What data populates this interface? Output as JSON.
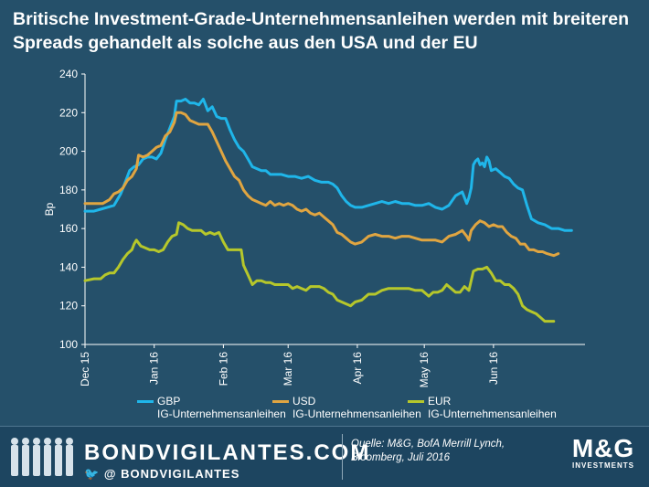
{
  "title": "Britische Investment-Grade-Unternehmensanleihen werden mit breiteren Spreads gehandelt als solche aus den USA und der EU",
  "chart_data": {
    "type": "line",
    "ylabel": "Bp",
    "ylim": [
      100,
      240
    ],
    "yticks": [
      100,
      120,
      140,
      160,
      180,
      200,
      220,
      240
    ],
    "xlim": [
      0,
      224
    ],
    "xticks": [
      {
        "label": "Dec 15",
        "pos": 0
      },
      {
        "label": "Jan 16",
        "pos": 31
      },
      {
        "label": "Feb 16",
        "pos": 62
      },
      {
        "label": "Mar 16",
        "pos": 91
      },
      {
        "label": "Apr 16",
        "pos": 122
      },
      {
        "label": "May 16",
        "pos": 152
      },
      {
        "label": "Jun 16",
        "pos": 183
      }
    ],
    "series": [
      {
        "name": "GBP IG-Unternehmensanleihen",
        "color": "#1fb6ea",
        "points": [
          [
            0,
            169
          ],
          [
            4,
            169
          ],
          [
            7,
            170
          ],
          [
            10,
            171
          ],
          [
            13,
            172
          ],
          [
            14,
            174
          ],
          [
            16,
            178
          ],
          [
            18,
            184
          ],
          [
            20,
            190
          ],
          [
            22,
            192
          ],
          [
            24,
            193
          ],
          [
            26,
            196
          ],
          [
            28,
            197
          ],
          [
            30,
            197
          ],
          [
            32,
            196
          ],
          [
            34,
            199
          ],
          [
            36,
            206
          ],
          [
            38,
            212
          ],
          [
            40,
            218
          ],
          [
            41,
            226
          ],
          [
            43,
            226
          ],
          [
            45,
            227
          ],
          [
            47,
            225
          ],
          [
            49,
            225
          ],
          [
            51,
            224
          ],
          [
            53,
            227
          ],
          [
            55,
            221
          ],
          [
            57,
            223
          ],
          [
            59,
            218
          ],
          [
            61,
            217
          ],
          [
            63,
            217
          ],
          [
            65,
            211
          ],
          [
            67,
            206
          ],
          [
            69,
            202
          ],
          [
            71,
            200
          ],
          [
            73,
            196
          ],
          [
            75,
            192
          ],
          [
            77,
            191
          ],
          [
            79,
            190
          ],
          [
            81,
            190
          ],
          [
            83,
            188
          ],
          [
            85,
            188
          ],
          [
            88,
            188
          ],
          [
            91,
            187
          ],
          [
            94,
            187
          ],
          [
            97,
            186
          ],
          [
            100,
            187
          ],
          [
            103,
            185
          ],
          [
            106,
            184
          ],
          [
            109,
            184
          ],
          [
            111,
            183
          ],
          [
            113,
            181
          ],
          [
            115,
            177
          ],
          [
            117,
            174
          ],
          [
            119,
            172
          ],
          [
            121,
            171
          ],
          [
            124,
            171
          ],
          [
            127,
            172
          ],
          [
            130,
            173
          ],
          [
            133,
            174
          ],
          [
            136,
            173
          ],
          [
            139,
            174
          ],
          [
            142,
            173
          ],
          [
            145,
            173
          ],
          [
            148,
            172
          ],
          [
            151,
            172
          ],
          [
            154,
            173
          ],
          [
            157,
            171
          ],
          [
            160,
            170
          ],
          [
            163,
            172
          ],
          [
            166,
            177
          ],
          [
            169,
            179
          ],
          [
            171,
            173
          ],
          [
            172,
            176
          ],
          [
            173,
            181
          ],
          [
            174,
            193
          ],
          [
            175,
            195
          ],
          [
            176,
            196
          ],
          [
            177,
            193
          ],
          [
            178,
            194
          ],
          [
            179,
            192
          ],
          [
            180,
            197
          ],
          [
            181,
            195
          ],
          [
            182,
            190
          ],
          [
            184,
            191
          ],
          [
            186,
            189
          ],
          [
            188,
            187
          ],
          [
            190,
            186
          ],
          [
            192,
            183
          ],
          [
            194,
            181
          ],
          [
            196,
            180
          ],
          [
            198,
            172
          ],
          [
            200,
            165
          ],
          [
            203,
            163
          ],
          [
            206,
            162
          ],
          [
            209,
            160
          ],
          [
            212,
            160
          ],
          [
            215,
            159
          ],
          [
            218,
            159
          ]
        ]
      },
      {
        "name": "USD IG-Unternehmensanleihen",
        "color": "#e0a541",
        "points": [
          [
            0,
            173
          ],
          [
            4,
            173
          ],
          [
            8,
            173
          ],
          [
            11,
            175
          ],
          [
            13,
            178
          ],
          [
            15,
            179
          ],
          [
            17,
            181
          ],
          [
            19,
            185
          ],
          [
            21,
            187
          ],
          [
            23,
            191
          ],
          [
            24,
            198
          ],
          [
            26,
            197
          ],
          [
            28,
            198
          ],
          [
            30,
            200
          ],
          [
            32,
            202
          ],
          [
            34,
            203
          ],
          [
            36,
            208
          ],
          [
            38,
            210
          ],
          [
            40,
            215
          ],
          [
            41,
            220
          ],
          [
            43,
            220
          ],
          [
            45,
            219
          ],
          [
            47,
            216
          ],
          [
            49,
            215
          ],
          [
            51,
            214
          ],
          [
            53,
            214
          ],
          [
            55,
            214
          ],
          [
            57,
            210
          ],
          [
            59,
            205
          ],
          [
            61,
            200
          ],
          [
            63,
            195
          ],
          [
            65,
            191
          ],
          [
            67,
            187
          ],
          [
            69,
            185
          ],
          [
            71,
            180
          ],
          [
            73,
            177
          ],
          [
            75,
            175
          ],
          [
            77,
            174
          ],
          [
            79,
            173
          ],
          [
            81,
            172
          ],
          [
            83,
            174
          ],
          [
            85,
            172
          ],
          [
            87,
            173
          ],
          [
            89,
            172
          ],
          [
            91,
            173
          ],
          [
            93,
            172
          ],
          [
            95,
            170
          ],
          [
            97,
            169
          ],
          [
            99,
            170
          ],
          [
            101,
            168
          ],
          [
            103,
            167
          ],
          [
            105,
            168
          ],
          [
            107,
            166
          ],
          [
            109,
            164
          ],
          [
            111,
            162
          ],
          [
            113,
            158
          ],
          [
            115,
            157
          ],
          [
            117,
            155
          ],
          [
            119,
            153
          ],
          [
            121,
            152
          ],
          [
            124,
            153
          ],
          [
            127,
            156
          ],
          [
            130,
            157
          ],
          [
            133,
            156
          ],
          [
            136,
            156
          ],
          [
            139,
            155
          ],
          [
            142,
            156
          ],
          [
            145,
            156
          ],
          [
            148,
            155
          ],
          [
            151,
            154
          ],
          [
            154,
            154
          ],
          [
            157,
            154
          ],
          [
            160,
            153
          ],
          [
            163,
            156
          ],
          [
            166,
            157
          ],
          [
            169,
            159
          ],
          [
            171,
            156
          ],
          [
            172,
            154
          ],
          [
            173,
            159
          ],
          [
            175,
            162
          ],
          [
            177,
            164
          ],
          [
            179,
            163
          ],
          [
            181,
            161
          ],
          [
            183,
            162
          ],
          [
            185,
            161
          ],
          [
            187,
            161
          ],
          [
            189,
            158
          ],
          [
            191,
            156
          ],
          [
            193,
            155
          ],
          [
            195,
            152
          ],
          [
            197,
            152
          ],
          [
            199,
            149
          ],
          [
            201,
            149
          ],
          [
            203,
            148
          ],
          [
            205,
            148
          ],
          [
            207,
            147
          ],
          [
            210,
            146
          ],
          [
            212,
            147
          ]
        ]
      },
      {
        "name": "EUR IG-Unternehmensanleihen",
        "color": "#b6c72b",
        "points": [
          [
            0,
            133
          ],
          [
            4,
            134
          ],
          [
            7,
            134
          ],
          [
            9,
            136
          ],
          [
            11,
            137
          ],
          [
            13,
            137
          ],
          [
            15,
            140
          ],
          [
            17,
            144
          ],
          [
            19,
            147
          ],
          [
            21,
            149
          ],
          [
            22,
            152
          ],
          [
            23,
            154
          ],
          [
            25,
            151
          ],
          [
            27,
            150
          ],
          [
            29,
            149
          ],
          [
            31,
            149
          ],
          [
            33,
            148
          ],
          [
            35,
            149
          ],
          [
            37,
            153
          ],
          [
            39,
            156
          ],
          [
            41,
            157
          ],
          [
            42,
            163
          ],
          [
            44,
            162
          ],
          [
            46,
            160
          ],
          [
            48,
            159
          ],
          [
            50,
            159
          ],
          [
            52,
            159
          ],
          [
            54,
            157
          ],
          [
            56,
            158
          ],
          [
            58,
            157
          ],
          [
            60,
            158
          ],
          [
            62,
            153
          ],
          [
            64,
            149
          ],
          [
            66,
            149
          ],
          [
            68,
            149
          ],
          [
            70,
            149
          ],
          [
            71,
            141
          ],
          [
            73,
            136
          ],
          [
            75,
            131
          ],
          [
            77,
            133
          ],
          [
            79,
            133
          ],
          [
            81,
            132
          ],
          [
            83,
            132
          ],
          [
            85,
            131
          ],
          [
            87,
            131
          ],
          [
            89,
            131
          ],
          [
            91,
            131
          ],
          [
            93,
            129
          ],
          [
            95,
            130
          ],
          [
            97,
            129
          ],
          [
            99,
            128
          ],
          [
            101,
            130
          ],
          [
            103,
            130
          ],
          [
            105,
            130
          ],
          [
            107,
            129
          ],
          [
            109,
            127
          ],
          [
            111,
            126
          ],
          [
            113,
            123
          ],
          [
            115,
            122
          ],
          [
            117,
            121
          ],
          [
            119,
            120
          ],
          [
            121,
            122
          ],
          [
            124,
            123
          ],
          [
            127,
            126
          ],
          [
            130,
            126
          ],
          [
            133,
            128
          ],
          [
            136,
            129
          ],
          [
            139,
            129
          ],
          [
            142,
            129
          ],
          [
            145,
            129
          ],
          [
            148,
            128
          ],
          [
            151,
            128
          ],
          [
            154,
            125
          ],
          [
            156,
            127
          ],
          [
            158,
            127
          ],
          [
            160,
            128
          ],
          [
            162,
            131
          ],
          [
            164,
            129
          ],
          [
            166,
            127
          ],
          [
            168,
            127
          ],
          [
            170,
            130
          ],
          [
            172,
            128
          ],
          [
            174,
            138
          ],
          [
            176,
            139
          ],
          [
            178,
            139
          ],
          [
            180,
            140
          ],
          [
            182,
            137
          ],
          [
            184,
            133
          ],
          [
            186,
            133
          ],
          [
            188,
            131
          ],
          [
            190,
            131
          ],
          [
            192,
            129
          ],
          [
            194,
            126
          ],
          [
            196,
            120
          ],
          [
            198,
            118
          ],
          [
            200,
            117
          ],
          [
            202,
            116
          ],
          [
            204,
            114
          ],
          [
            206,
            112
          ],
          [
            208,
            112
          ],
          [
            210,
            112
          ]
        ]
      }
    ],
    "legend": [
      {
        "line1": "GBP",
        "line2": "IG-Unternehmensanleihen",
        "color": "#1fb6ea"
      },
      {
        "line1": "USD",
        "line2": "IG-Unternehmensanleihen",
        "color": "#e0a541"
      },
      {
        "line1": "EUR",
        "line2": "IG-Unternehmensanleihen",
        "color": "#b6c72b"
      }
    ]
  },
  "footer": {
    "brand": "BONDVIGILANTES.COM",
    "social": "@ BONDVIGILANTES",
    "source_line1": "Quelle: M&G, BofA Merrill Lynch,",
    "source_line2": "Bloomberg, Juli 2016",
    "logo": "M&G",
    "logo_sub": "INVESTMENTS"
  }
}
